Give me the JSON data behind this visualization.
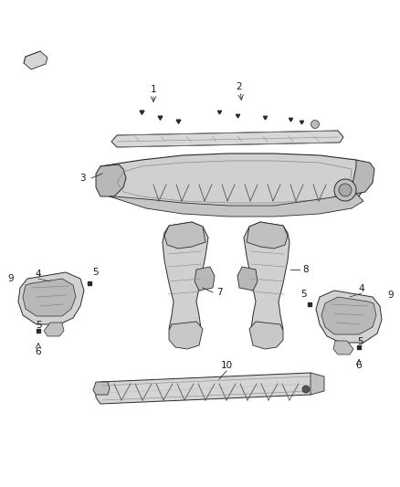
{
  "background_color": "#ffffff",
  "figsize": [
    4.38,
    5.33
  ],
  "dpi": 100,
  "line_color": "#2a2a2a",
  "text_color": "#1a1a1a",
  "font_size_labels": 7.5,
  "part_fill": "#e0e0e0",
  "part_fill2": "#cccccc",
  "part_fill3": "#d8d8d8",
  "part_stroke": "#2a2a2a"
}
